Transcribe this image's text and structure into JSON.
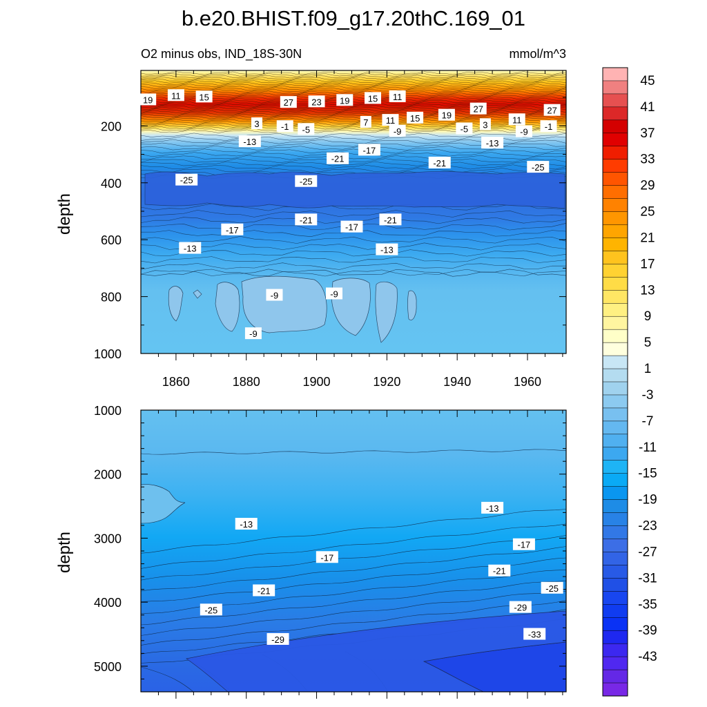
{
  "figure": {
    "title": "b.e20.BHIST.f09_g17.20thC.169_01",
    "subtitle_left": "O2 minus obs, IND_18S-30N",
    "subtitle_right": "mmol/m^3"
  },
  "chart_data": [
    {
      "type": "heatmap",
      "panel": "upper",
      "ylabel": "depth",
      "x_ticks": [
        "1860",
        "1880",
        "1900",
        "1920",
        "1940",
        "1960"
      ],
      "y_ticks": [
        "200",
        "400",
        "600",
        "800",
        "1000"
      ],
      "xlim": [
        1850,
        1971
      ],
      "ylim": [
        1000,
        5
      ],
      "y_reversed": true,
      "contour_labels": [
        {
          "text": "19",
          "x": 1852,
          "y": 108
        },
        {
          "text": "11",
          "x": 1860,
          "y": 93
        },
        {
          "text": "15",
          "x": 1868,
          "y": 98
        },
        {
          "text": "27",
          "x": 1892,
          "y": 117
        },
        {
          "text": "23",
          "x": 1900,
          "y": 115
        },
        {
          "text": "19",
          "x": 1908,
          "y": 110
        },
        {
          "text": "15",
          "x": 1916,
          "y": 103
        },
        {
          "text": "11",
          "x": 1923,
          "y": 97
        },
        {
          "text": "27",
          "x": 1946,
          "y": 140
        },
        {
          "text": "27",
          "x": 1967,
          "y": 145
        },
        {
          "text": "19",
          "x": 1937,
          "y": 162
        },
        {
          "text": "15",
          "x": 1928,
          "y": 172
        },
        {
          "text": "11",
          "x": 1921,
          "y": 180
        },
        {
          "text": "11",
          "x": 1957,
          "y": 178
        },
        {
          "text": "7",
          "x": 1914,
          "y": 187
        },
        {
          "text": "3",
          "x": 1883,
          "y": 192
        },
        {
          "text": "-1",
          "x": 1891,
          "y": 202
        },
        {
          "text": "-5",
          "x": 1897,
          "y": 212
        },
        {
          "text": "-9",
          "x": 1923,
          "y": 218
        },
        {
          "text": "3",
          "x": 1948,
          "y": 195
        },
        {
          "text": "-5",
          "x": 1942,
          "y": 210
        },
        {
          "text": "-9",
          "x": 1959,
          "y": 220
        },
        {
          "text": "-1",
          "x": 1966,
          "y": 202
        },
        {
          "text": "-13",
          "x": 1881,
          "y": 255
        },
        {
          "text": "-13",
          "x": 1950,
          "y": 260
        },
        {
          "text": "-17",
          "x": 1915,
          "y": 285
        },
        {
          "text": "-21",
          "x": 1906,
          "y": 315
        },
        {
          "text": "-21",
          "x": 1935,
          "y": 330
        },
        {
          "text": "-25",
          "x": 1963,
          "y": 345
        },
        {
          "text": "-25",
          "x": 1863,
          "y": 390
        },
        {
          "text": "-25",
          "x": 1897,
          "y": 395
        },
        {
          "text": "-21",
          "x": 1897,
          "y": 530
        },
        {
          "text": "-21",
          "x": 1921,
          "y": 530
        },
        {
          "text": "-17",
          "x": 1876,
          "y": 565
        },
        {
          "text": "-17",
          "x": 1910,
          "y": 555
        },
        {
          "text": "-13",
          "x": 1864,
          "y": 630
        },
        {
          "text": "-13",
          "x": 1920,
          "y": 635
        },
        {
          "text": "-9",
          "x": 1888,
          "y": 795
        },
        {
          "text": "-9",
          "x": 1905,
          "y": 790
        },
        {
          "text": "-9",
          "x": 1882,
          "y": 930
        }
      ]
    },
    {
      "type": "heatmap",
      "panel": "lower",
      "ylabel": "depth",
      "y_ticks": [
        "1000",
        "2000",
        "3000",
        "4000",
        "5000"
      ],
      "xlim": [
        1850,
        1971
      ],
      "ylim": [
        5400,
        1000
      ],
      "y_reversed": true,
      "contour_labels": [
        {
          "text": "-13",
          "x": 1880,
          "y": 2780
        },
        {
          "text": "-13",
          "x": 1950,
          "y": 2530
        },
        {
          "text": "-17",
          "x": 1903,
          "y": 3300
        },
        {
          "text": "-17",
          "x": 1959,
          "y": 3100
        },
        {
          "text": "-21",
          "x": 1885,
          "y": 3820
        },
        {
          "text": "-21",
          "x": 1952,
          "y": 3510
        },
        {
          "text": "-25",
          "x": 1870,
          "y": 4120
        },
        {
          "text": "-25",
          "x": 1967,
          "y": 3780
        },
        {
          "text": "-29",
          "x": 1889,
          "y": 4580
        },
        {
          "text": "-29",
          "x": 1958,
          "y": 4080
        },
        {
          "text": "-33",
          "x": 1962,
          "y": 4500
        }
      ]
    }
  ],
  "colorbar": {
    "labels": [
      "45",
      "41",
      "37",
      "33",
      "29",
      "25",
      "21",
      "17",
      "13",
      "9",
      "5",
      "1",
      "-3",
      "-7",
      "-11",
      "-15",
      "-19",
      "-23",
      "-27",
      "-31",
      "-35",
      "-39",
      "-43"
    ],
    "colors": [
      "#ffb3b3",
      "#f08080",
      "#e65050",
      "#dc2828",
      "#d40000",
      "#e00000",
      "#f01e00",
      "#ff3c00",
      "#ff5500",
      "#ff6e00",
      "#ff8200",
      "#ff9600",
      "#ffa500",
      "#ffb400",
      "#ffc31e",
      "#ffd232",
      "#ffdc46",
      "#ffe664",
      "#fff082",
      "#fff5a0",
      "#ffffc8",
      "#ffffde",
      "#c8e6f5",
      "#b4dcf0",
      "#a0d2ee",
      "#8ccaf0",
      "#78c0f0",
      "#64b8f0",
      "#50b0f0",
      "#3ca8f0",
      "#1eb4f5",
      "#0aaaf5",
      "#0a96f0",
      "#1e8ce6",
      "#2882e6",
      "#3278e6",
      "#3c6ee6",
      "#3264e6",
      "#285ae6",
      "#2050e6",
      "#1846f0",
      "#103cf0",
      "#0a32f5",
      "#1e28f0",
      "#3c28f0",
      "#5028f0",
      "#6428e6",
      "#7828e6"
    ]
  }
}
